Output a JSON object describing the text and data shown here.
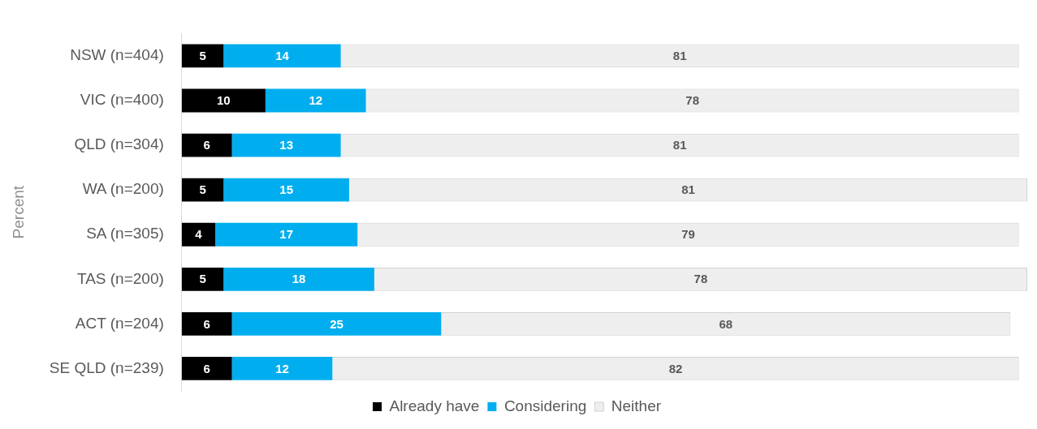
{
  "chart_data": {
    "type": "bar",
    "orientation": "horizontal",
    "stacked": true,
    "ylabel": "Percent",
    "categories": [
      "NSW (n=404)",
      "VIC (n=400)",
      "QLD (n=304)",
      "WA (n=200)",
      "SA (n=305)",
      "TAS (n=200)",
      "ACT (n=204)",
      "SE QLD (n=239)"
    ],
    "series": [
      {
        "name": "Already have",
        "color": "#000000",
        "values": [
          5,
          10,
          6,
          5,
          4,
          5,
          6,
          6
        ]
      },
      {
        "name": "Considering",
        "color": "#00aeef",
        "values": [
          14,
          12,
          13,
          15,
          17,
          18,
          25,
          12
        ]
      },
      {
        "name": "Neither",
        "color": "#eeeeee",
        "values": [
          81,
          78,
          81,
          81,
          79,
          78,
          68,
          82
        ]
      }
    ],
    "xlim": [
      0,
      101
    ],
    "data_labels": true,
    "legend": "bottom",
    "grid": false,
    "tick_labels": "y"
  }
}
